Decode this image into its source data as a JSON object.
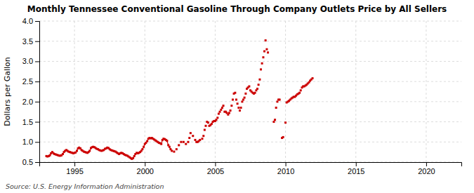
{
  "chart_data": {
    "type": "line",
    "title": "Monthly Tennessee Conventional Gasoline Through Company Outlets Price by All Sellers",
    "ylabel": "Dollars per Gallon",
    "annotations": [
      "Source: U.S. Energy Information Administration"
    ],
    "xlim": [
      1992.5,
      2022.5
    ],
    "ylim": [
      0.5,
      4.0
    ],
    "xticks": [
      1995,
      2000,
      2005,
      2010,
      2015,
      2020
    ],
    "yticks": [
      0.5,
      {
        "value": 1.0,
        "label": "1.0"
      },
      1.5,
      {
        "value": 2.0,
        "label": "2.0"
      },
      2.5,
      {
        "value": 3.0,
        "label": "3.0"
      },
      3.5,
      {
        "value": 4.0,
        "label": "4.0"
      }
    ],
    "grid": true,
    "series": [
      {
        "type": "line",
        "color": "#CC0000",
        "marker": "square",
        "x": [
          1993.0,
          1993.08,
          1993.17,
          1993.25,
          1993.33,
          1993.42,
          1993.5,
          1993.58,
          1993.67,
          1993.75,
          1993.83,
          1993.92,
          1994.0,
          1994.08,
          1994.17,
          1994.25,
          1994.33,
          1994.42,
          1994.5,
          1994.58,
          1994.67,
          1994.75,
          1994.83,
          1994.92,
          1995.0,
          1995.08,
          1995.17,
          1995.25,
          1995.33,
          1995.42,
          1995.5,
          1995.58,
          1995.67,
          1995.75,
          1995.83,
          1995.92,
          1996.0,
          1996.08,
          1996.17,
          1996.25,
          1996.33,
          1996.42,
          1996.5,
          1996.58,
          1996.67,
          1996.75,
          1996.83,
          1996.92,
          1997.0,
          1997.08,
          1997.17,
          1997.25,
          1997.33,
          1997.42,
          1997.5,
          1997.58,
          1997.67,
          1997.75,
          1997.83,
          1997.92,
          1998.0,
          1998.08,
          1998.17,
          1998.25,
          1998.33,
          1998.42,
          1998.5,
          1998.58,
          1998.67,
          1998.75,
          1998.83,
          1998.92,
          1999.0,
          1999.08,
          1999.17,
          1999.25,
          1999.33,
          1999.42,
          1999.5,
          1999.58,
          1999.67,
          1999.75,
          1999.83,
          1999.92,
          2000.0,
          2000.08,
          2000.17,
          2000.25,
          2000.33,
          2000.42,
          2000.5,
          2000.58,
          2000.67,
          2000.75,
          2000.83,
          2000.92,
          2001.0,
          2001.08,
          2001.17,
          2001.25,
          2001.33,
          2001.42,
          2001.5,
          2001.58,
          2001.67,
          2001.75,
          2001.83,
          2001.92
        ],
        "values": [
          0.65,
          0.64,
          0.65,
          0.67,
          0.72,
          0.75,
          0.72,
          0.7,
          0.69,
          0.68,
          0.67,
          0.66,
          0.66,
          0.67,
          0.7,
          0.75,
          0.78,
          0.8,
          0.78,
          0.76,
          0.75,
          0.74,
          0.73,
          0.72,
          0.73,
          0.74,
          0.78,
          0.84,
          0.86,
          0.84,
          0.8,
          0.78,
          0.76,
          0.75,
          0.74,
          0.73,
          0.75,
          0.78,
          0.85,
          0.87,
          0.88,
          0.87,
          0.85,
          0.83,
          0.82,
          0.8,
          0.79,
          0.78,
          0.79,
          0.8,
          0.83,
          0.84,
          0.86,
          0.85,
          0.82,
          0.8,
          0.79,
          0.78,
          0.77,
          0.76,
          0.74,
          0.72,
          0.7,
          0.72,
          0.73,
          0.72,
          0.7,
          0.68,
          0.67,
          0.66,
          0.64,
          0.62,
          0.6,
          0.58,
          0.6,
          0.65,
          0.7,
          0.73,
          0.72,
          0.73,
          0.75,
          0.78,
          0.82,
          0.88,
          0.95,
          0.98,
          1.02,
          1.08,
          1.1,
          1.09,
          1.1,
          1.08,
          1.06,
          1.04,
          1.02,
          1.0,
          0.98,
          0.97,
          0.95,
          1.05,
          1.08,
          1.07,
          1.05,
          1.03,
          0.92,
          0.88,
          0.82,
          0.78
        ]
      },
      {
        "type": "scatter",
        "color": "#CC0000",
        "marker": "square",
        "x": [
          2002.08,
          2002.25,
          2002.42,
          2002.58,
          2002.75,
          2002.92,
          2003.08,
          2003.17,
          2003.25,
          2003.42,
          2003.58,
          2003.67,
          2003.75,
          2003.83,
          2003.92,
          2004.08,
          2004.17,
          2004.25,
          2004.33,
          2004.42,
          2004.5,
          2004.58,
          2004.67,
          2004.75,
          2004.83,
          2004.92,
          2005.0,
          2005.08,
          2005.17,
          2005.25,
          2005.33,
          2005.42,
          2005.5,
          2005.58,
          2005.67,
          2005.75,
          2005.83,
          2005.92,
          2006.0,
          2006.08,
          2006.17,
          2006.25,
          2006.33,
          2006.42,
          2006.5,
          2006.58,
          2006.67,
          2006.75,
          2006.83,
          2006.92,
          2007.0,
          2007.08,
          2007.17,
          2007.25,
          2007.33,
          2007.42,
          2007.5,
          2007.58,
          2007.67,
          2007.75,
          2007.83,
          2007.92,
          2008.0,
          2008.08,
          2008.17,
          2008.25,
          2008.33,
          2008.42,
          2008.5,
          2008.58,
          2008.67,
          2008.75,
          2009.17,
          2009.25,
          2009.33,
          2009.42,
          2009.5,
          2009.58,
          2009.75,
          2009.83,
          2010.0,
          2010.08,
          2010.17,
          2010.25,
          2010.33,
          2010.42,
          2010.5,
          2010.58,
          2010.67,
          2010.75,
          2010.83,
          2010.92,
          2011.0,
          2011.08,
          2011.17,
          2011.25,
          2011.33,
          2011.42,
          2011.5,
          2011.58,
          2011.67,
          2011.75,
          2011.83,
          2011.92
        ],
        "values": [
          0.76,
          0.82,
          0.92,
          1.0,
          1.0,
          0.95,
          1.0,
          1.1,
          1.22,
          1.15,
          1.05,
          1.0,
          1.0,
          1.02,
          1.05,
          1.08,
          1.15,
          1.3,
          1.4,
          1.5,
          1.48,
          1.4,
          1.42,
          1.45,
          1.5,
          1.52,
          1.52,
          1.55,
          1.6,
          1.7,
          1.75,
          1.8,
          1.85,
          1.9,
          1.75,
          1.75,
          1.72,
          1.68,
          1.72,
          1.78,
          1.9,
          2.05,
          2.2,
          2.22,
          2.05,
          1.95,
          1.85,
          1.78,
          1.85,
          2.0,
          2.05,
          2.1,
          2.2,
          2.32,
          2.35,
          2.38,
          2.28,
          2.25,
          2.22,
          2.2,
          2.22,
          2.28,
          2.32,
          2.42,
          2.55,
          2.8,
          2.95,
          3.1,
          3.25,
          3.52,
          3.3,
          3.22,
          1.5,
          1.55,
          1.85,
          2.0,
          2.05,
          2.05,
          1.1,
          1.12,
          1.48,
          1.98,
          2.0,
          2.02,
          2.05,
          2.08,
          2.1,
          2.12,
          2.12,
          2.15,
          2.18,
          2.2,
          2.22,
          2.28,
          2.35,
          2.38,
          2.38,
          2.4,
          2.42,
          2.45,
          2.48,
          2.52,
          2.55,
          2.58
        ]
      }
    ]
  }
}
